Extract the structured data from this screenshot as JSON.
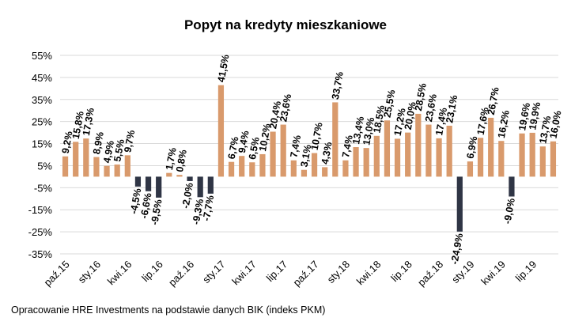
{
  "chart_data": {
    "type": "bar",
    "title": "Popyt na kredyty mieszkaniowe",
    "xlabel": "",
    "ylabel": "",
    "ylim": [
      -35,
      55
    ],
    "y_ticks": [
      "55%",
      "45%",
      "35%",
      "25%",
      "15%",
      "5%",
      "-5%",
      "-15%",
      "-25%",
      "-35%"
    ],
    "grid": true,
    "colors": {
      "positive": "#d99a6c",
      "negative": "#2f3545",
      "grid": "#d9d9d9"
    },
    "tick_labels": [
      {
        "index": 0,
        "label": "paź.15"
      },
      {
        "index": 3,
        "label": "sty.16"
      },
      {
        "index": 6,
        "label": "kwi.16"
      },
      {
        "index": 9,
        "label": "lip.16"
      },
      {
        "index": 12,
        "label": "paź.16"
      },
      {
        "index": 15,
        "label": "sty.17"
      },
      {
        "index": 18,
        "label": "kwi.17"
      },
      {
        "index": 21,
        "label": "lip.17"
      },
      {
        "index": 24,
        "label": "paź.17"
      },
      {
        "index": 27,
        "label": "sty.18"
      },
      {
        "index": 30,
        "label": "kwi.18"
      },
      {
        "index": 33,
        "label": "lip.18"
      },
      {
        "index": 36,
        "label": "paź.18"
      },
      {
        "index": 39,
        "label": "sty.19"
      },
      {
        "index": 42,
        "label": "kwi.19"
      },
      {
        "index": 45,
        "label": "lip.19"
      }
    ],
    "values": [
      9.2,
      15.8,
      17.3,
      8.9,
      4.9,
      5.5,
      9.7,
      -4.5,
      -6.6,
      -9.5,
      1.7,
      0.8,
      -2.0,
      -9.3,
      -7.7,
      41.5,
      6.7,
      9.4,
      6.5,
      10.2,
      20.4,
      23.6,
      7.4,
      3.1,
      10.7,
      4.3,
      33.7,
      7.4,
      13.4,
      13.0,
      18.5,
      25.5,
      17.2,
      20.0,
      28.5,
      23.6,
      17.4,
      23.1,
      -24.9,
      6.9,
      17.6,
      26.7,
      16.2,
      -9.0,
      19.6,
      19.9,
      13.7,
      16.0
    ],
    "data_labels": [
      "9,2%",
      "15,8%",
      "17,3%",
      "8,9%",
      "4,9%",
      "5,5%",
      "9,7%",
      "-4,5%",
      "-6,6%",
      "-9,5%",
      "1,7%",
      "0,8%",
      "-2,0%",
      "-9,3%",
      "-7,7%",
      "41,5%",
      "6,7%",
      "9,4%",
      "6,5%",
      "10,2%",
      "20,4%",
      "23,6%",
      "7,4%",
      "3,1%",
      "10,7%",
      "4,3%",
      "33,7%",
      "7,4%",
      "13,4%",
      "13,0%",
      "18,5%",
      "25,5%",
      "17,2%",
      "20,0%",
      "28,5%",
      "23,6%",
      "17,4%",
      "23,1%",
      "-24,9%",
      "6,9%",
      "17,6%",
      "26,7%",
      "16,2%",
      "-9,0%",
      "19,6%",
      "19,9%",
      "13,7%",
      "16,0%"
    ]
  },
  "footer": {
    "source": "Opracowanie HRE Investments na podstawie danych BIK (indeks PKM)"
  }
}
